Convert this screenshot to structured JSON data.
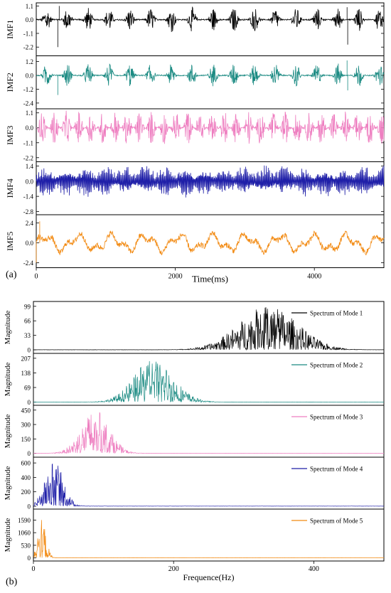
{
  "panel_labels": {
    "a": "(a)",
    "b": "(b)"
  },
  "chart_data": [
    {
      "type": "line",
      "panel": "(a)",
      "xlabel": "Time(ms)",
      "xlim": [
        0,
        5000
      ],
      "xticks": [
        0,
        2000,
        4000
      ],
      "series": [
        {
          "ylabel": "IMF1",
          "color": "#000000",
          "ylim": [
            -2.9,
            1.35
          ],
          "yticks": [
            "1.1",
            "0.0",
            "-1.1",
            "-2.2"
          ],
          "amp": 0.75,
          "kind": "bursty",
          "freq": 0.34,
          "bias": 0,
          "spikes": [
            [
              310,
              -2.2
            ],
            [
              330,
              1.1
            ],
            [
              4480,
              -2.0
            ],
            [
              4470,
              1.0
            ]
          ]
        },
        {
          "ylabel": "IMF2",
          "color": "#1a8a82",
          "ylim": [
            -2.9,
            1.7
          ],
          "yticks": [
            "1.2",
            "0.0",
            "-1.2",
            "-2.4"
          ],
          "amp": 0.8,
          "kind": "bursty",
          "freq": 0.17,
          "bias": 0,
          "spikes": [
            [
              310,
              -1.7
            ],
            [
              4470,
              1.3
            ],
            [
              4480,
              -1.3
            ]
          ]
        },
        {
          "ylabel": "IMF3",
          "color": "#ee7ec0",
          "ylim": [
            -2.5,
            1.4
          ],
          "yticks": [
            "1.1",
            "0.0",
            "-1.1",
            "-2.2"
          ],
          "amp": 0.95,
          "kind": "bursty2",
          "freq": 0.09,
          "bias": 0,
          "spikes": []
        },
        {
          "ylabel": "IMF4",
          "color": "#1f1fa8",
          "ylim": [
            -3.1,
            1.8
          ],
          "yticks": [
            "1.4",
            "0.0",
            "-1.4",
            "-2.8"
          ],
          "amp": 1.2,
          "kind": "dense",
          "freq": 0.035,
          "bias": 0,
          "spikes": []
        },
        {
          "ylabel": "IMF5",
          "color": "#f28a12",
          "ylim": [
            -3.0,
            3.4
          ],
          "yticks": [
            "2.4",
            "0.0",
            "-2.4"
          ],
          "amp": 1.1,
          "kind": "smooth",
          "freq": 0.013,
          "bias": 0,
          "spikes": [
            [
              50,
              2.6
            ],
            [
              0,
              -2.4
            ]
          ]
        }
      ]
    },
    {
      "type": "line",
      "panel": "(b)",
      "xlabel": "Frequence(Hz)",
      "xlim": [
        0,
        500
      ],
      "xticks": [
        0,
        200,
        400
      ],
      "ylabel_all": "Magnitude",
      "series": [
        {
          "name": "Spectrum of Mode 1",
          "color": "#000000",
          "ylim": [
            -8,
            110
          ],
          "yticks": [
            0,
            33,
            66,
            99
          ],
          "center": 335,
          "width": 42,
          "peak": 100
        },
        {
          "name": "Spectrum of Mode 2",
          "color": "#1a8a82",
          "ylim": [
            -15,
            230
          ],
          "yticks": [
            0,
            69,
            138,
            207
          ],
          "center": 172,
          "width": 28,
          "peak": 205
        },
        {
          "name": "Spectrum of Mode 3",
          "color": "#ee7ec0",
          "ylim": [
            -40,
            500
          ],
          "yticks": [
            0,
            150,
            300,
            450
          ],
          "center": 88,
          "width": 20,
          "peak": 450
        },
        {
          "name": "Spectrum of Mode 4",
          "color": "#1f1fa8",
          "ylim": [
            -40,
            680
          ],
          "yticks": [
            0,
            200,
            400,
            600
          ],
          "center": 30,
          "width": 13,
          "peak": 620
        },
        {
          "name": "Spectrum of Mode 5",
          "color": "#f28a12",
          "ylim": [
            -130,
            2050
          ],
          "yticks": [
            0,
            530,
            1060,
            1590
          ],
          "center": 12,
          "width": 6,
          "peak": 1650
        }
      ]
    }
  ]
}
